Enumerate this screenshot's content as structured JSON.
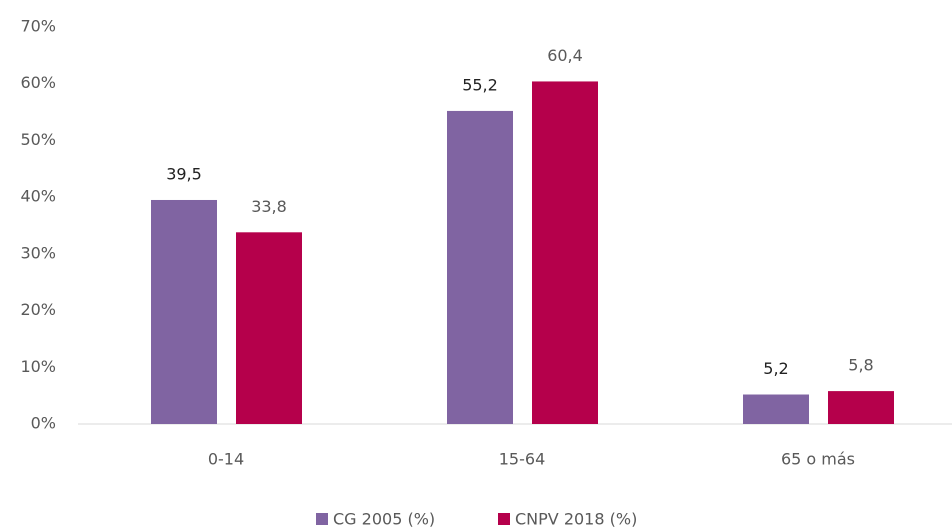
{
  "chart_data": {
    "type": "bar",
    "categories": [
      "0-14",
      "15-64",
      "65 o más"
    ],
    "series": [
      {
        "name": "CG 2005 (%)",
        "color": "#8064a2",
        "values": [
          39.5,
          55.2,
          5.2
        ],
        "value_labels": [
          "39,5",
          "55,2",
          "5,2"
        ]
      },
      {
        "name": "CNPV 2018 (%)",
        "color": "#b5004b",
        "values": [
          33.8,
          60.4,
          5.8
        ],
        "value_labels": [
          "33,8",
          "60,4",
          "5,8"
        ]
      }
    ],
    "ylim": [
      0,
      70
    ],
    "yticks": [
      {
        "value": 0,
        "label": "0%"
      },
      {
        "value": 10,
        "label": "10%"
      },
      {
        "value": 20,
        "label": "20%"
      },
      {
        "value": 30,
        "label": "30%"
      },
      {
        "value": 40,
        "label": "40%"
      },
      {
        "value": 50,
        "label": "50%"
      },
      {
        "value": 60,
        "label": "60%"
      },
      {
        "value": 70,
        "label": "70%"
      }
    ],
    "grid": false,
    "legend": "bottom"
  }
}
